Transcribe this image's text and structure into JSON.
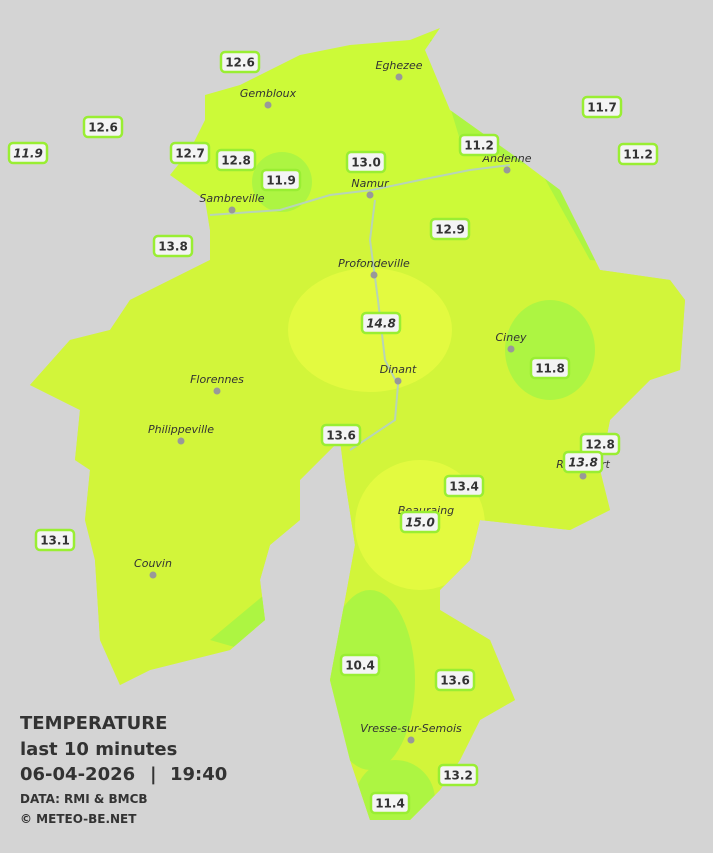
{
  "legend": {
    "title": "TEMPERATURE",
    "period": "last 10 minutes",
    "date": "06-04-2026",
    "separator": "|",
    "time": "19:40",
    "source": "DATA: RMI & BMCB",
    "copyright": "© METEO-BE.NET"
  },
  "towns": [
    "Eghezee",
    "Gembloux",
    "Andenne",
    "Namur",
    "Sambreville",
    "Profondeville",
    "Ciney",
    "Dinant",
    "Florennes",
    "Philippeville",
    "Rochefort",
    "Beauraing",
    "Couvin",
    "Vresse-sur-Semois"
  ],
  "stations": [
    {
      "label": "12.6",
      "italic": false
    },
    {
      "label": "12.6",
      "italic": false
    },
    {
      "label": "11.9",
      "italic": true
    },
    {
      "label": "12.7",
      "italic": false
    },
    {
      "label": "12.8",
      "italic": false
    },
    {
      "label": "11.9",
      "italic": false
    },
    {
      "label": "13.0",
      "italic": false
    },
    {
      "label": "11.2",
      "italic": false
    },
    {
      "label": "11.7",
      "italic": false
    },
    {
      "label": "11.2",
      "italic": false
    },
    {
      "label": "13.8",
      "italic": false
    },
    {
      "label": "12.9",
      "italic": false
    },
    {
      "label": "14.8",
      "italic": true
    },
    {
      "label": "11.8",
      "italic": false
    },
    {
      "label": "13.6",
      "italic": false
    },
    {
      "label": "12.8",
      "italic": false
    },
    {
      "label": "13.8",
      "italic": true
    },
    {
      "label": "13.4",
      "italic": false
    },
    {
      "label": "15.0",
      "italic": true
    },
    {
      "label": "13.1",
      "italic": false
    },
    {
      "label": "10.4",
      "italic": false
    },
    {
      "label": "13.6",
      "italic": false
    },
    {
      "label": "13.2",
      "italic": false
    },
    {
      "label": "11.4",
      "italic": false
    }
  ]
}
